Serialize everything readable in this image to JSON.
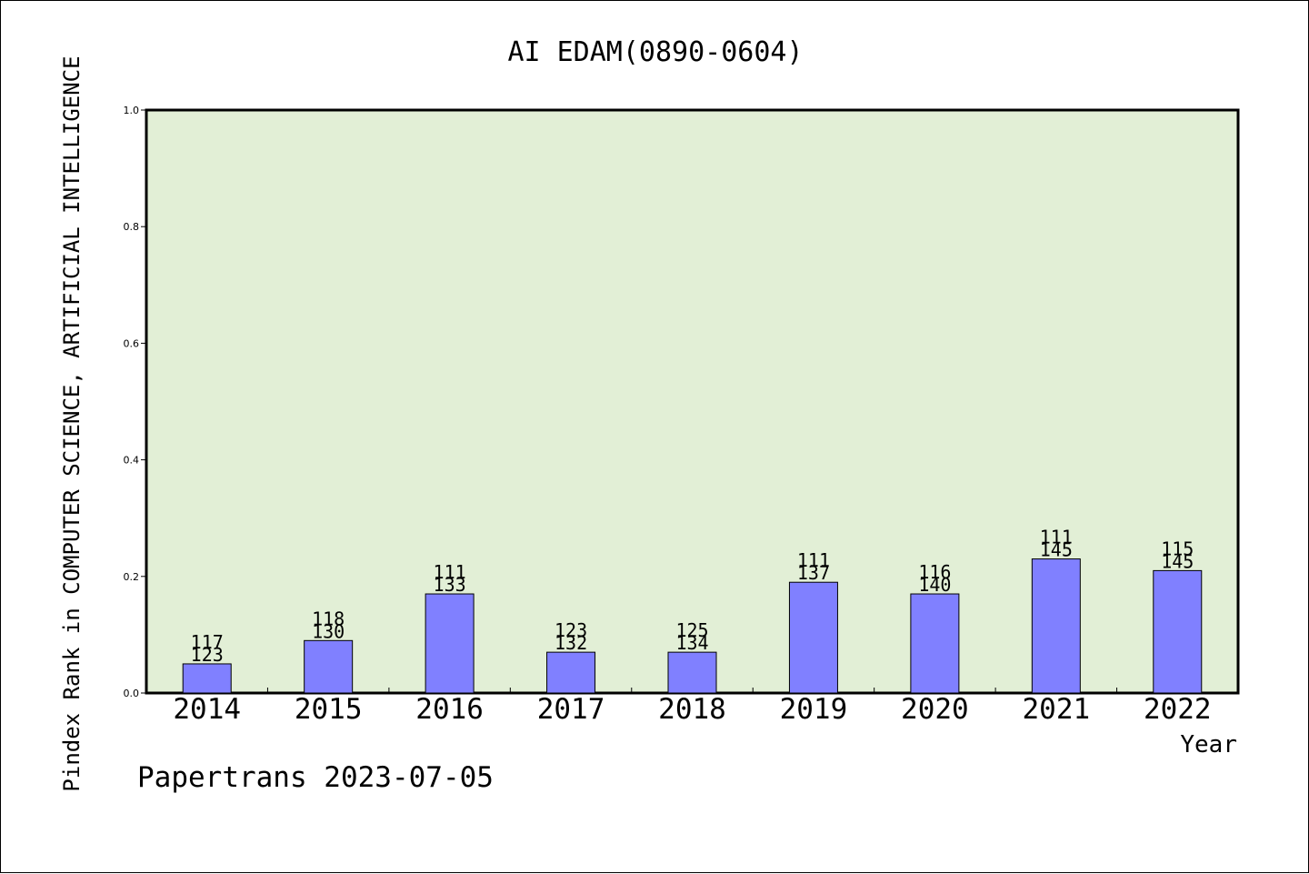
{
  "chart_data": {
    "type": "bar",
    "title": "AI EDAM(0890-0604)",
    "xlabel": "Year",
    "ylabel": "Pindex Rank in COMPUTER SCIENCE, ARTIFICIAL INTELLIGENCE",
    "categories": [
      "2014",
      "2015",
      "2016",
      "2017",
      "2018",
      "2019",
      "2020",
      "2021",
      "2022"
    ],
    "values": [
      0.05,
      0.09,
      0.17,
      0.07,
      0.07,
      0.19,
      0.17,
      0.23,
      0.21
    ],
    "bar_labels": [
      {
        "top": "117",
        "bottom": "123"
      },
      {
        "top": "118",
        "bottom": "130"
      },
      {
        "top": "111",
        "bottom": "133"
      },
      {
        "top": "123",
        "bottom": "132"
      },
      {
        "top": "125",
        "bottom": "134"
      },
      {
        "top": "111",
        "bottom": "137"
      },
      {
        "top": "116",
        "bottom": "140"
      },
      {
        "top": "111",
        "bottom": "145"
      },
      {
        "top": "115",
        "bottom": "145"
      }
    ],
    "ylim": [
      0,
      1.0
    ],
    "yticks": [
      "0.0",
      "0.2",
      "0.4",
      "0.6",
      "0.8",
      "1.0"
    ],
    "grid": false,
    "bar_color": "#8080ff",
    "plot_background": "#e2efd6",
    "footer": "Papertrans 2023-07-05"
  }
}
